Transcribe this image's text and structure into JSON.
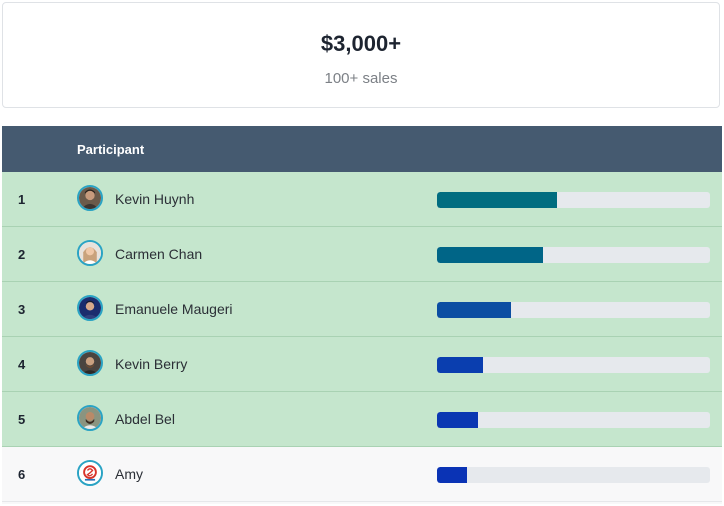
{
  "prize": {
    "amount": "$3,000+",
    "subtitle": "100+ sales"
  },
  "board": {
    "header": {
      "participant_label": "Participant"
    },
    "rows": [
      {
        "rank": "1",
        "name": "Kevin Huynh",
        "progress": 0.44,
        "bar_color": "#006d80",
        "avatar": "photo-avatar",
        "highlighted": true
      },
      {
        "rank": "2",
        "name": "Carmen Chan",
        "progress": 0.39,
        "bar_color": "#006587",
        "avatar": "photo-avatar",
        "highlighted": true
      },
      {
        "rank": "3",
        "name": "Emanuele Maugeri",
        "progress": 0.27,
        "bar_color": "#0b4ea2",
        "avatar": "photo-avatar",
        "highlighted": true
      },
      {
        "rank": "4",
        "name": "Kevin Berry",
        "progress": 0.17,
        "bar_color": "#0a3eaf",
        "avatar": "photo-avatar",
        "highlighted": true
      },
      {
        "rank": "5",
        "name": "Abdel Bel",
        "progress": 0.15,
        "bar_color": "#0a37b2",
        "avatar": "photo-avatar",
        "highlighted": true
      },
      {
        "rank": "6",
        "name": "Amy",
        "progress": 0.11,
        "bar_color": "#0a33b5",
        "avatar": "logo-avatar",
        "highlighted": false
      }
    ]
  },
  "colors": {
    "header_bg": "#455a70",
    "highlight_row_bg": "#c5e6cd",
    "avatar_ring": "#2aa3c4"
  }
}
